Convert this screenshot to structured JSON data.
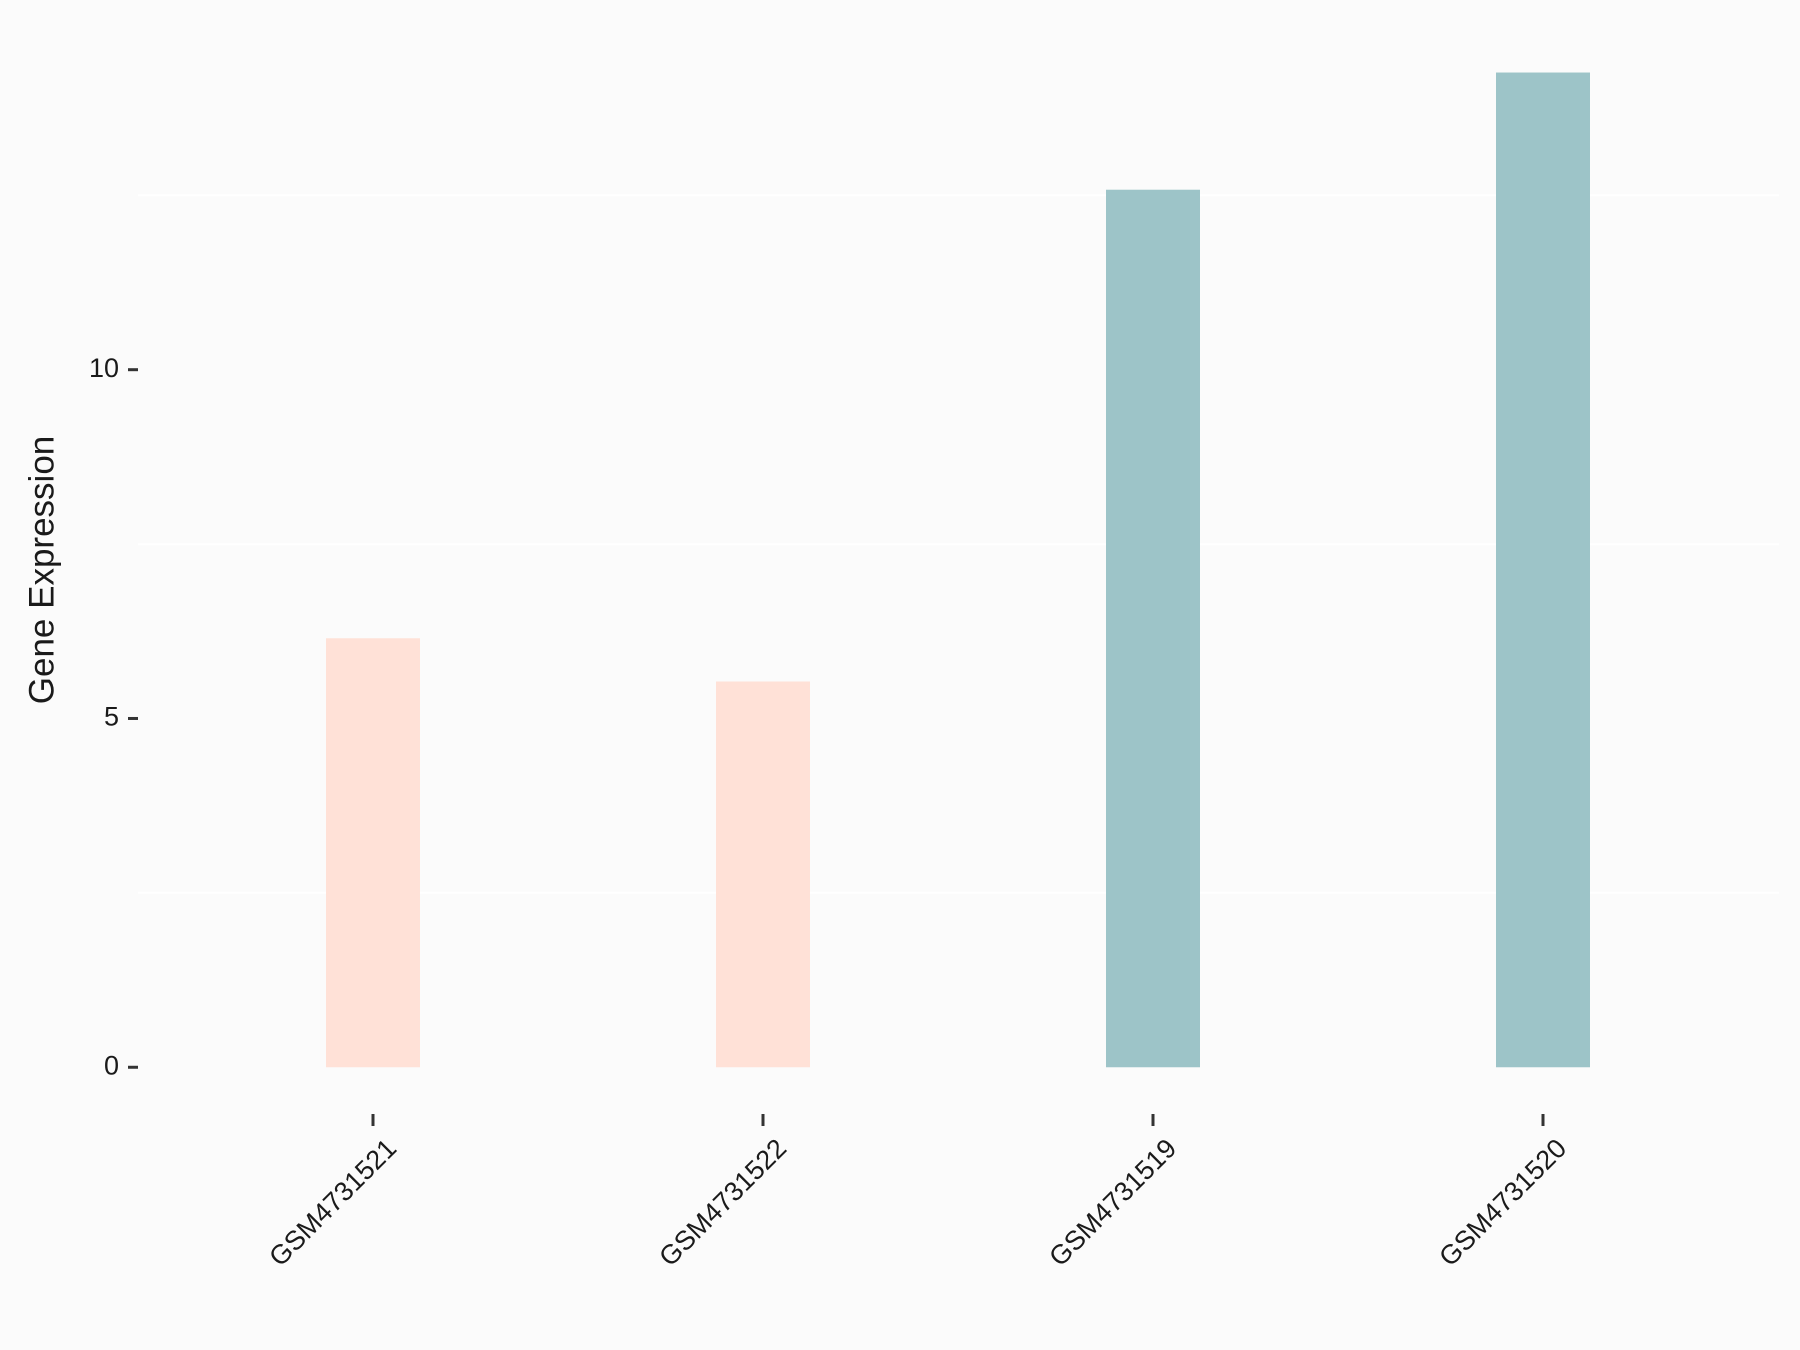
{
  "chart_data": {
    "type": "bar",
    "ylabel": "Gene Expression",
    "categories": [
      "GSM4731521",
      "GSM4731522",
      "GSM4731519",
      "GSM4731520"
    ],
    "values": [
      6.15,
      5.53,
      12.58,
      14.26
    ],
    "colors": [
      "#ffe1d7",
      "#ffe1d7",
      "#9dc4c8",
      "#9dc4c8"
    ],
    "ylim": [
      -0.713,
      14.97
    ],
    "yticks": [
      0,
      5,
      10
    ],
    "yminorticks": [
      2.5,
      7.5,
      12.5
    ],
    "grid": true,
    "background": "#fbfbfb"
  }
}
